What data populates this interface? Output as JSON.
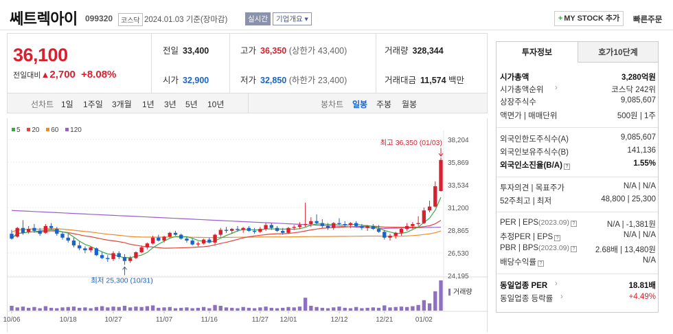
{
  "header": {
    "name": "쎄트렉아이",
    "code": "099320",
    "market": "코스닥",
    "date": "2024.01.03 기준(장마감)",
    "live": "실시간",
    "company_info": "기업개요 ▾",
    "mystock": "MY STOCK 추가",
    "mystock_plus": "+",
    "quick_order": "빠른주문"
  },
  "price": {
    "current": "36,100",
    "change_label": "전일대비",
    "change_arrow": "▲",
    "change": "2,700",
    "change_pct": "+8.08%",
    "prev_label": "전일",
    "prev": "33,400",
    "high_label": "고가",
    "high": "36,350",
    "upper_limit": "(상한가 43,400)",
    "volume_label": "거래량",
    "volume": "328,344",
    "open_label": "시가",
    "open": "32,900",
    "low_label": "저가",
    "low": "32,850",
    "lower_limit": "(하한가 23,400)",
    "amount_label": "거래대금",
    "amount": "11,574",
    "amount_unit": "백만"
  },
  "toolbar": {
    "line_label": "선차트",
    "periods": [
      "1일",
      "1주일",
      "3개월",
      "1년",
      "3년",
      "5년",
      "10년"
    ],
    "candle_label": "봉차트",
    "candles": [
      "일봉",
      "주봉",
      "월봉"
    ],
    "selected_candle": "일봉"
  },
  "chart_data": {
    "type": "candlestick",
    "legend": [
      {
        "name": "5",
        "color": "#3aa84a"
      },
      {
        "name": "20",
        "color": "#e0463c"
      },
      {
        "name": "60",
        "color": "#f08a24"
      },
      {
        "name": "120",
        "color": "#9c5ccc"
      }
    ],
    "y_ticks": [
      "38,204",
      "35,869",
      "33,534",
      "31,200",
      "28,865",
      "26,530",
      "24,195"
    ],
    "ylim": [
      24195,
      38204
    ],
    "x_ticks": [
      "10/06",
      "10/18",
      "10/27",
      "11/07",
      "11/16",
      "11/27",
      "12/01",
      "12/12",
      "12/21",
      "01/02"
    ],
    "high_annotation": "최고 36,350 (01/03)",
    "low_annotation": "최저 25,300 (10/31)",
    "volume_label": "거래량",
    "up_color": "#d8202e",
    "down_color": "#1a63c7",
    "candles": [
      [
        28500,
        28900,
        27900,
        28000
      ],
      [
        28200,
        29200,
        28100,
        29100
      ],
      [
        29100,
        29900,
        28400,
        28600
      ],
      [
        28700,
        29300,
        28500,
        29000
      ],
      [
        29100,
        29500,
        28600,
        28800
      ],
      [
        28800,
        29100,
        28300,
        28500
      ],
      [
        28600,
        29500,
        28500,
        29300
      ],
      [
        29300,
        29600,
        28900,
        29100
      ],
      [
        29000,
        29200,
        28300,
        28500
      ],
      [
        28500,
        28700,
        27900,
        28100
      ],
      [
        28100,
        28500,
        27600,
        27800
      ],
      [
        27800,
        28100,
        27100,
        27300
      ],
      [
        27300,
        27700,
        26800,
        27000
      ],
      [
        27000,
        27200,
        26500,
        26800
      ],
      [
        26800,
        27200,
        26600,
        27100
      ],
      [
        27000,
        27100,
        26200,
        26300
      ],
      [
        26300,
        26600,
        25900,
        26000
      ],
      [
        26000,
        26300,
        25600,
        25900
      ],
      [
        25900,
        26700,
        25700,
        26500
      ],
      [
        26500,
        26700,
        25900,
        26100
      ],
      [
        26100,
        26400,
        25300,
        25700
      ],
      [
        25700,
        26200,
        25500,
        26000
      ],
      [
        26000,
        26700,
        25900,
        26600
      ],
      [
        26600,
        27300,
        26500,
        27100
      ],
      [
        27100,
        27600,
        26900,
        27500
      ],
      [
        27500,
        28300,
        27400,
        28100
      ],
      [
        28100,
        28400,
        27700,
        27800
      ],
      [
        27800,
        28300,
        27600,
        28200
      ],
      [
        28200,
        28700,
        28100,
        28600
      ],
      [
        28600,
        28800,
        28300,
        28400
      ],
      [
        28400,
        28500,
        27900,
        28000
      ],
      [
        28000,
        28200,
        27600,
        27800
      ],
      [
        27800,
        28000,
        27300,
        27400
      ],
      [
        27400,
        27700,
        27200,
        27500
      ],
      [
        27500,
        28000,
        27400,
        27900
      ],
      [
        27900,
        28100,
        27500,
        27600
      ],
      [
        27600,
        28500,
        27400,
        28400
      ],
      [
        28400,
        29100,
        28200,
        28900
      ],
      [
        28900,
        29200,
        28600,
        28800
      ],
      [
        28800,
        29100,
        28500,
        29000
      ],
      [
        29000,
        29300,
        28700,
        28900
      ],
      [
        28900,
        29200,
        28600,
        29100
      ],
      [
        29100,
        29300,
        28700,
        28800
      ],
      [
        28800,
        29100,
        28500,
        28700
      ],
      [
        28700,
        29200,
        28600,
        29000
      ],
      [
        29000,
        29600,
        28800,
        29400
      ],
      [
        29400,
        29600,
        28900,
        29100
      ],
      [
        29100,
        29300,
        28700,
        28800
      ],
      [
        28800,
        29100,
        28400,
        28600
      ],
      [
        28600,
        29200,
        28500,
        29100
      ],
      [
        29100,
        29400,
        28900,
        29200
      ],
      [
        29200,
        29700,
        29000,
        29400
      ],
      [
        29400,
        31700,
        29200,
        29500
      ],
      [
        29500,
        30200,
        29200,
        29800
      ],
      [
        29800,
        30500,
        29500,
        29600
      ],
      [
        29600,
        30000,
        29100,
        29300
      ],
      [
        29300,
        29600,
        28900,
        29100
      ],
      [
        29100,
        29700,
        28900,
        29600
      ],
      [
        29600,
        30100,
        29400,
        29500
      ],
      [
        29500,
        29800,
        29200,
        29400
      ],
      [
        29400,
        29700,
        29100,
        29600
      ],
      [
        29600,
        29800,
        29200,
        29300
      ],
      [
        29300,
        29500,
        28900,
        29100
      ],
      [
        29100,
        29400,
        28800,
        29300
      ],
      [
        29300,
        29500,
        28900,
        29000
      ],
      [
        29000,
        29400,
        28600,
        28700
      ],
      [
        28700,
        28900,
        27900,
        28100
      ],
      [
        28100,
        28500,
        27800,
        28300
      ],
      [
        28300,
        28700,
        28000,
        28600
      ],
      [
        28600,
        29100,
        28300,
        29000
      ],
      [
        29000,
        29600,
        28800,
        29300
      ],
      [
        29300,
        29700,
        29000,
        29500
      ],
      [
        29500,
        30300,
        29300,
        29600
      ],
      [
        29600,
        31200,
        29500,
        30900
      ],
      [
        30900,
        31900,
        30700,
        31300
      ],
      [
        31300,
        33900,
        31200,
        33400
      ],
      [
        32900,
        36350,
        32850,
        36100
      ]
    ],
    "volume": [
      12,
      8,
      10,
      7,
      9,
      6,
      11,
      7,
      6,
      8,
      9,
      10,
      7,
      8,
      6,
      9,
      11,
      8,
      10,
      9,
      12,
      8,
      10,
      9,
      11,
      13,
      7,
      8,
      9,
      6,
      7,
      8,
      6,
      7,
      9,
      6,
      14,
      12,
      8,
      7,
      6,
      9,
      7,
      6,
      8,
      10,
      7,
      6,
      7,
      9,
      8,
      10,
      32,
      12,
      9,
      7,
      6,
      8,
      10,
      7,
      6,
      9,
      6,
      7,
      8,
      7,
      13,
      8,
      9,
      10,
      9,
      11,
      14,
      26,
      18,
      48,
      75
    ]
  },
  "side": {
    "tab_invest": "투자정보",
    "tab_orderbook": "호가10단계",
    "rows1": [
      {
        "label": "시가총액",
        "value": "3,280억원"
      },
      {
        "label": "시가총액순위",
        "value": "코스닥 242위"
      },
      {
        "label": "상장주식수",
        "value": "9,085,607"
      },
      {
        "label": "액면가 | 매매단위",
        "value": "500원 | 1주"
      }
    ],
    "rows2": [
      {
        "label": "외국인한도주식수(A)",
        "value": "9,085,607"
      },
      {
        "label": "외국인보유주식수(B)",
        "value": "141,136"
      },
      {
        "label": "외국인소진율(B/A)",
        "value": "1.55%"
      }
    ],
    "rows3": [
      {
        "label": "투자의견 | 목표주가",
        "value": "N/A | N/A"
      },
      {
        "label": "52주최고 | 최저",
        "value": "48,800 | 25,300"
      }
    ],
    "rows4": [
      {
        "label": "PER | EPS",
        "year": "(2023.09)",
        "value": "N/A | -1,381원"
      },
      {
        "label": "추정PER | EPS",
        "year": "",
        "value": "N/A | N/A"
      },
      {
        "label": "PBR | BPS",
        "year": "(2023.09)",
        "value": "2.68배 | 13,480원"
      },
      {
        "label": "배당수익률",
        "year": "",
        "value": "N/A"
      }
    ],
    "rows5": [
      {
        "label": "동일업종 PER",
        "value": "18.81배"
      },
      {
        "label": "동일업종 등락률",
        "value": "+4.49%"
      }
    ],
    "help_mark": "?"
  }
}
